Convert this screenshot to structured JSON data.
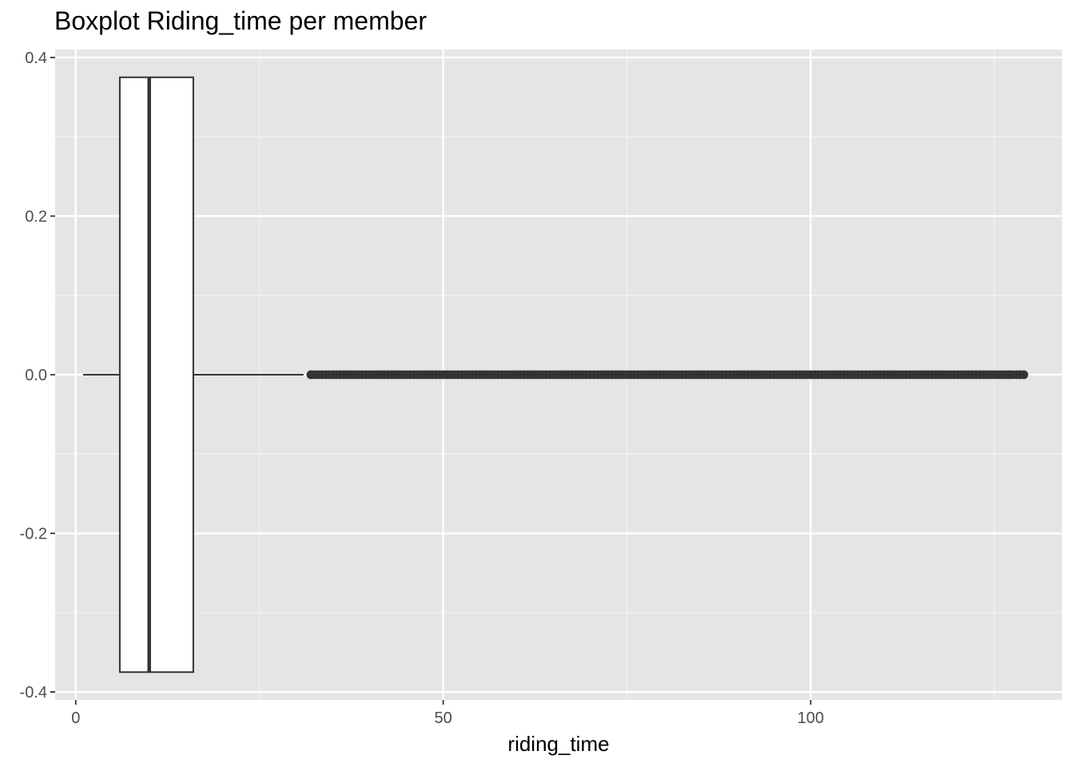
{
  "chart_data": {
    "type": "boxplot",
    "title": "Boxplot Riding_time per member",
    "xlabel": "riding_time",
    "ylabel": "",
    "xlim": [
      -2.8,
      134.2
    ],
    "ylim": [
      -0.41,
      0.41
    ],
    "x_ticks": [
      0,
      50,
      100
    ],
    "x_tick_labels": [
      "0",
      "50",
      "100"
    ],
    "x_minor_ticks": [
      25,
      75,
      125
    ],
    "y_ticks": [
      -0.4,
      -0.2,
      0.0,
      0.2,
      0.4
    ],
    "y_tick_labels": [
      "-0.4",
      "-0.2",
      "0.0",
      "0.2",
      "0.4"
    ],
    "y_minor_ticks": [
      -0.3,
      -0.1,
      0.1,
      0.3
    ],
    "grid": true,
    "panel_color": "#e5e5e5",
    "box": {
      "min": 1,
      "q1": 6,
      "median": 10,
      "q3": 16,
      "whisker_high": 31,
      "y_low": -0.375,
      "y_high": 0.375,
      "y_center": 0
    },
    "outliers": {
      "y": 0,
      "from": 32,
      "to": 129,
      "step": 0.5
    }
  }
}
